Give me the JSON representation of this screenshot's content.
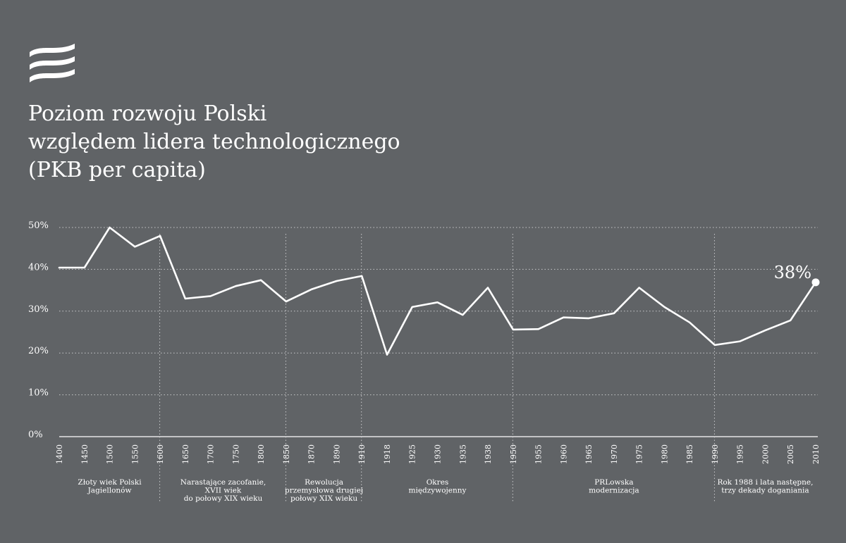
{
  "title_lines": [
    "Poziom rozwoju Polski",
    "względem lidera technologicznego",
    "(PKB per capita)"
  ],
  "chart_data": {
    "type": "line",
    "title": "Poziom rozwoju Polski względem lidera technologicznego (PKB per capita)",
    "x": [
      "1400",
      "1450",
      "1500",
      "1550",
      "1600",
      "1650",
      "1700",
      "1750",
      "1800",
      "1850",
      "1870",
      "1890",
      "1910",
      "1918",
      "1925",
      "1930",
      "1935",
      "1938",
      "1950",
      "1955",
      "1960",
      "1965",
      "1970",
      "1975",
      "1980",
      "1985",
      "1990",
      "1995",
      "2000",
      "2005",
      "2010"
    ],
    "series": [
      {
        "values": [
          40.4,
          40.4,
          50.0,
          45.4,
          48.0,
          33.0,
          33.6,
          36.0,
          37.4,
          32.3,
          35.2,
          37.2,
          38.4,
          19.6,
          31.0,
          32.1,
          29.1,
          35.6,
          25.6,
          25.7,
          28.5,
          28.3,
          29.5,
          35.6,
          31.0,
          27.3,
          21.9,
          22.8,
          25.4,
          27.8,
          36.9
        ]
      }
    ],
    "yticks": [
      0,
      10,
      20,
      30,
      40,
      50
    ],
    "ytick_labels": [
      "0%",
      "10%",
      "20%",
      "30%",
      "40%",
      "50%"
    ],
    "ylim": [
      0,
      50
    ],
    "grid": "horizontal-dotted",
    "annotation": "38%",
    "dividers_after": [
      "1600",
      "1850",
      "1910",
      "1950",
      "1990"
    ],
    "periods": [
      {
        "lines": [
          "Złoty wiek Polski",
          "Jagiellonów"
        ],
        "from": "1400",
        "to": "1600"
      },
      {
        "lines": [
          "Narastające zacofanie,",
          "XVII wiek",
          "do połowy XIX wieku"
        ],
        "from": "1600",
        "to": "1850"
      },
      {
        "lines": [
          "Rewolucja",
          "przemysłowa drugiej",
          "połowy XIX wieku"
        ],
        "from": "1850",
        "to": "1910"
      },
      {
        "lines": [
          "Okres",
          "międzywojenny"
        ],
        "from": "1910",
        "to": "1950"
      },
      {
        "lines": [
          "PRLowska",
          "modernizacja"
        ],
        "from": "1950",
        "to": "1990"
      },
      {
        "lines": [
          "Rok 1988 i lata następne,",
          "trzy dekady doganiania"
        ],
        "from": "1990",
        "to": "2010"
      }
    ],
    "colors": {
      "background": "#606366",
      "line": "#ffffff",
      "grid": "#c8c9cb"
    }
  }
}
